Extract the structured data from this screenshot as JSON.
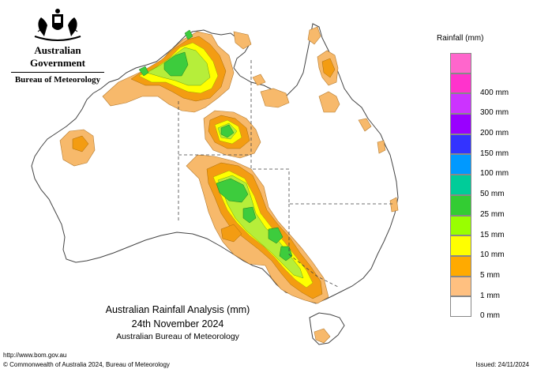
{
  "header": {
    "government": "Australian Government",
    "agency": "Bureau of Meteorology"
  },
  "map": {
    "region": "Australia",
    "boundaries": [
      "WA",
      "NT",
      "SA",
      "QLD",
      "NSW",
      "VIC",
      "TAS"
    ]
  },
  "legend": {
    "title": "Rainfall (mm)",
    "items": [
      {
        "label": "",
        "color": "#ff66cc"
      },
      {
        "label": "400 mm",
        "color": "#ff33cc"
      },
      {
        "label": "300 mm",
        "color": "#cc33ff"
      },
      {
        "label": "200 mm",
        "color": "#9900ff"
      },
      {
        "label": "150 mm",
        "color": "#3333ff"
      },
      {
        "label": "100 mm",
        "color": "#0099ff"
      },
      {
        "label": "50 mm",
        "color": "#00cc99"
      },
      {
        "label": "25 mm",
        "color": "#33cc33"
      },
      {
        "label": "15 mm",
        "color": "#99ff00"
      },
      {
        "label": "10 mm",
        "color": "#ffff00"
      },
      {
        "label": "5 mm",
        "color": "#ffaa00"
      },
      {
        "label": "1 mm",
        "color": "#ffc080"
      },
      {
        "label": "0 mm",
        "color": "#ffffff"
      }
    ]
  },
  "title": {
    "main": "Australian Rainfall Analysis (mm)",
    "date": "24th November 2024",
    "org": "Australian Bureau of Meteorology"
  },
  "footer": {
    "url": "http://www.bom.gov.au",
    "copyright": "© Commonwealth of Australia 2024, Bureau of Meteorology",
    "issued": "Issued: 24/11/2024"
  },
  "colors": {
    "coast": "#444444",
    "one_mm": "#f7b96b",
    "five_mm": "#f39c12",
    "ten_mm": "#ffff00",
    "fifteen_mm": "#b6ee3a",
    "twentyfive_mm": "#3dcc3d"
  }
}
